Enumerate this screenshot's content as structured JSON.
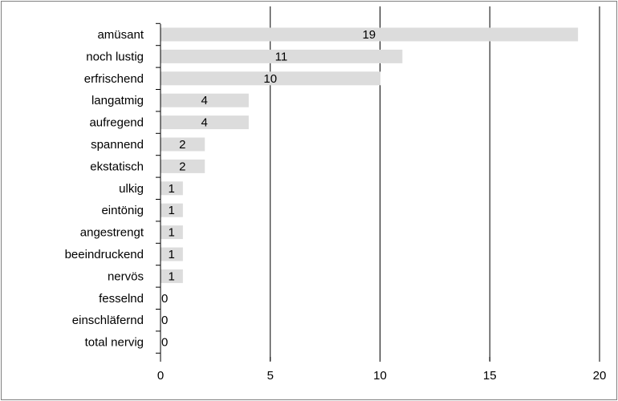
{
  "chart_data": {
    "type": "bar",
    "orientation": "horizontal",
    "categories": [
      "amüsant",
      "noch lustig",
      "erfrischend",
      "langatmig",
      "aufregend",
      "spannend",
      "ekstatisch",
      "ulkig",
      "eintönig",
      "angestrengt",
      "beeindruckend",
      "nervös",
      "fesselnd",
      "einschläfernd",
      "total nervig"
    ],
    "values": [
      19,
      11,
      10,
      4,
      4,
      2,
      2,
      1,
      1,
      1,
      1,
      1,
      0,
      0,
      0
    ],
    "xlim": [
      0,
      20
    ],
    "x_ticks": [
      0,
      5,
      10,
      15,
      20
    ],
    "title": "",
    "xlabel": "",
    "ylabel": "",
    "grid": "vertical",
    "legend": "none",
    "bar_color": "#dcdcdc",
    "grid_color": "#000000",
    "frame_color": "#7f7f7f"
  }
}
